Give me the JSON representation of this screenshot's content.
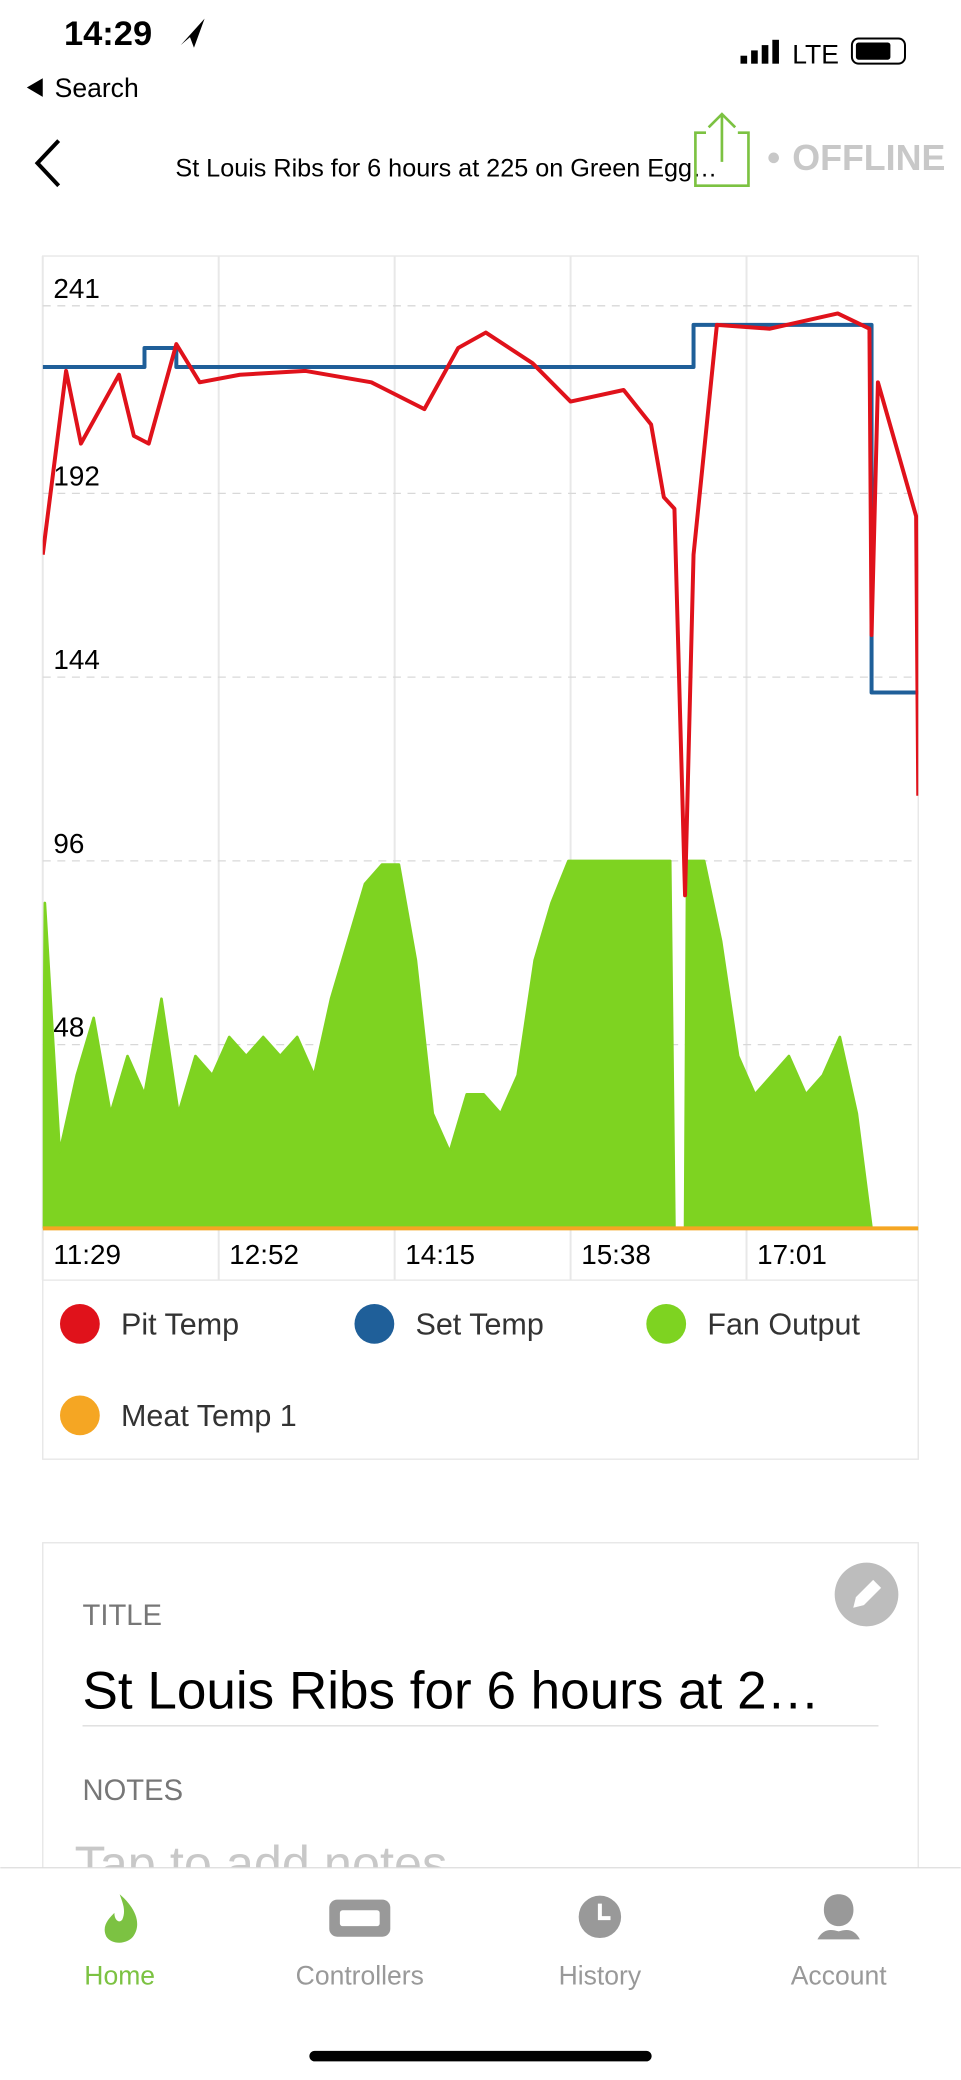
{
  "status_bar": {
    "time": "14:29",
    "back": "Search",
    "network": "LTE"
  },
  "header": {
    "title": "St Louis Ribs for 6 hours at 225 on Green Egg…",
    "status": "OFFLINE"
  },
  "chart_data": {
    "type": "line",
    "xlim": [
      "11:29",
      "18:22"
    ],
    "xticks": [
      "11:29",
      "12:52",
      "14:15",
      "15:38",
      "17:01"
    ],
    "ylim": [
      0,
      254
    ],
    "yticks": [
      0,
      48,
      96,
      144,
      192,
      241
    ],
    "grid": true,
    "series": [
      {
        "name": "Fan Output",
        "color": "#7ed321",
        "fill": true,
        "x": [
          "11:29",
          "11:30",
          "11:37",
          "11:45",
          "11:53",
          "12:01",
          "12:09",
          "12:17",
          "12:25",
          "12:33",
          "12:41",
          "12:49",
          "12:57",
          "13:05",
          "13:13",
          "13:21",
          "13:29",
          "13:37",
          "13:45",
          "13:53",
          "14:01",
          "14:09",
          "14:17",
          "14:25",
          "14:33",
          "14:41",
          "14:49",
          "14:57",
          "15:05",
          "15:13",
          "15:21",
          "15:29",
          "15:37",
          "15:45",
          "15:53",
          "16:01",
          "16:09",
          "16:17",
          "16:25",
          "16:27",
          "16:32",
          "16:33",
          "16:41",
          "16:49",
          "16:57",
          "17:05",
          "17:13",
          "17:21",
          "17:29",
          "17:37",
          "17:45",
          "17:53",
          "18:00",
          "18:22"
        ],
        "values": [
          0,
          85,
          20,
          40,
          55,
          30,
          45,
          35,
          60,
          30,
          45,
          40,
          50,
          45,
          50,
          45,
          50,
          40,
          60,
          75,
          90,
          95,
          95,
          70,
          30,
          20,
          35,
          35,
          30,
          40,
          70,
          85,
          96,
          96,
          96,
          96,
          96,
          96,
          96,
          0,
          0,
          96,
          96,
          75,
          45,
          35,
          40,
          45,
          35,
          40,
          50,
          30,
          0,
          0
        ]
      },
      {
        "name": "Set Temp",
        "color": "#1f5f99",
        "x": [
          "11:29",
          "12:17",
          "12:17",
          "12:32",
          "12:32",
          "16:36",
          "16:36",
          "18:00",
          "18:00",
          "18:22"
        ],
        "values": [
          225,
          225,
          230,
          230,
          225,
          225,
          236,
          236,
          140,
          140
        ]
      },
      {
        "name": "Pit Temp",
        "color": "#e0121b",
        "x": [
          "11:29",
          "11:40",
          "11:47",
          "12:05",
          "12:12",
          "12:19",
          "12:32",
          "12:43",
          "13:02",
          "13:33",
          "14:04",
          "14:29",
          "14:45",
          "14:58",
          "15:20",
          "15:38",
          "16:03",
          "16:16",
          "16:22",
          "16:27",
          "16:32",
          "16:36",
          "16:47",
          "17:12",
          "17:44",
          "17:59",
          "18:00",
          "18:03",
          "18:21",
          "18:22"
        ],
        "values": [
          176,
          224,
          205,
          223,
          207,
          205,
          231,
          221,
          223,
          224,
          221,
          214,
          230,
          234,
          226,
          216,
          219,
          210,
          191,
          188,
          87,
          176,
          236,
          235,
          239,
          235,
          155,
          221,
          186,
          113
        ]
      },
      {
        "name": "Meat Temp 1",
        "color": "#f5a623",
        "x": [
          "11:29",
          "18:22"
        ],
        "values": [
          0,
          0
        ]
      }
    ]
  },
  "details": {
    "title_label": "TITLE",
    "title": "St Louis Ribs for 6 hours at 2…",
    "notes_label": "NOTES",
    "notes_placeholder": "Tap to add notes"
  },
  "tabs": [
    "Home",
    "Controllers",
    "History",
    "Account"
  ]
}
